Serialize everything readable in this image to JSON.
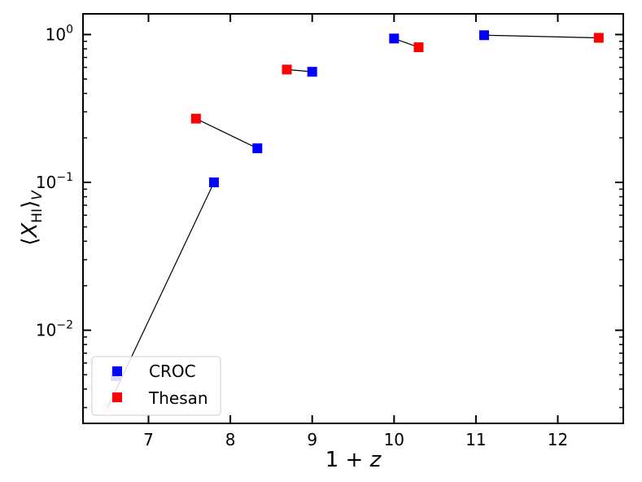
{
  "chart_data": {
    "type": "scatter",
    "xlabel": "1 + z",
    "ylabel": "⟨X_HI⟩_V",
    "xlim": [
      6.2,
      12.8
    ],
    "ylim_log10": [
      -2.63,
      0.14
    ],
    "yscale": "log",
    "x_ticks": [
      7,
      8,
      9,
      10,
      11,
      12
    ],
    "x_tick_labels": [
      "7",
      "8",
      "9",
      "10",
      "11",
      "12"
    ],
    "y_ticks": [
      -2,
      -1,
      0
    ],
    "y_tick_labels": [
      {
        "base": "10",
        "exp": "−2"
      },
      {
        "base": "10",
        "exp": "−1"
      },
      {
        "base": "10",
        "exp": "0"
      }
    ],
    "legend_position": "lower-left",
    "series": [
      {
        "name": "CROC",
        "color": "#0000ff",
        "points": [
          {
            "x": 6.6,
            "y": 0.0049
          },
          {
            "x": 7.8,
            "y": 0.1
          },
          {
            "x": 8.33,
            "y": 0.17
          },
          {
            "x": 9.0,
            "y": 0.56
          },
          {
            "x": 10.0,
            "y": 0.94
          },
          {
            "x": 11.1,
            "y": 0.99
          }
        ]
      },
      {
        "name": "Thesan",
        "color": "#ff0000",
        "points": [
          {
            "x": 6.5,
            "y": 0.003
          },
          {
            "x": 7.58,
            "y": 0.27
          },
          {
            "x": 8.69,
            "y": 0.58
          },
          {
            "x": 10.3,
            "y": 0.82
          },
          {
            "x": 12.5,
            "y": 0.95
          }
        ]
      }
    ],
    "connectors": [
      {
        "from": {
          "x": 6.5,
          "y": 0.003
        },
        "to": {
          "x": 7.8,
          "y": 0.1
        }
      },
      {
        "from": {
          "x": 7.58,
          "y": 0.27
        },
        "to": {
          "x": 8.33,
          "y": 0.17
        }
      },
      {
        "from": {
          "x": 8.69,
          "y": 0.58
        },
        "to": {
          "x": 9.0,
          "y": 0.56
        }
      },
      {
        "from": {
          "x": 10.0,
          "y": 0.94
        },
        "to": {
          "x": 10.3,
          "y": 0.82
        }
      },
      {
        "from": {
          "x": 11.1,
          "y": 0.99
        },
        "to": {
          "x": 12.5,
          "y": 0.95
        }
      }
    ]
  }
}
